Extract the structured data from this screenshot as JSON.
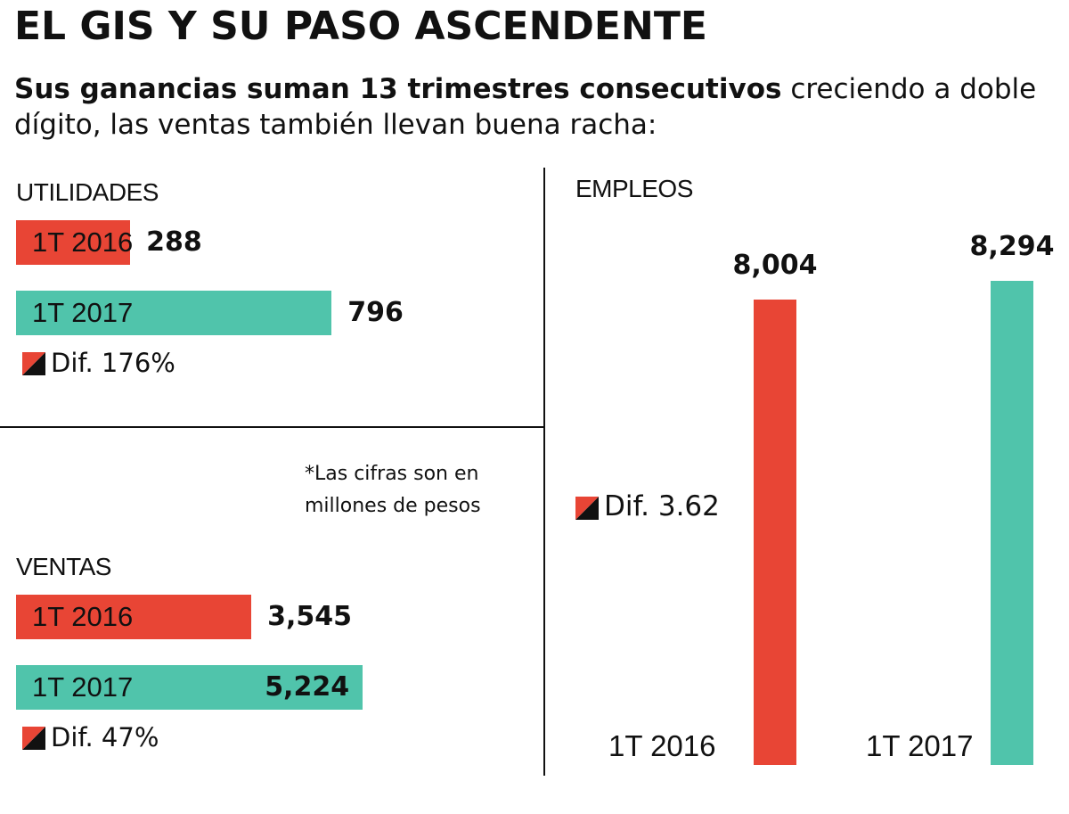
{
  "title": "EL GIS Y SU PASO ASCENDENTE",
  "subtitle_bold": "Sus ganancias suman 13 trimestres consecutivos",
  "subtitle_rest": " creciendo a doble dígito, las ventas también llevan buena racha:",
  "note_line1": "*Las cifras son en",
  "note_line2": "millones de pesos",
  "colors": {
    "q2016": "#e84535",
    "q2017": "#50c4ab",
    "icon_dark": "#111111"
  },
  "chart_data": [
    {
      "type": "bar",
      "orientation": "horizontal",
      "title": "UTILIDADES",
      "categories": [
        "1T 2016",
        "1T 2017"
      ],
      "values": [
        288,
        796
      ],
      "value_labels": [
        "288",
        "796"
      ],
      "difference": "Dif. 176%"
    },
    {
      "type": "bar",
      "orientation": "horizontal",
      "title": "VENTAS",
      "categories": [
        "1T 2016",
        "1T 2017"
      ],
      "values": [
        3545,
        5224
      ],
      "value_labels": [
        "3,545",
        "5,224"
      ],
      "difference": "Dif. 47%"
    },
    {
      "type": "bar",
      "orientation": "vertical",
      "title": "EMPLEOS",
      "categories": [
        "1T 2016",
        "1T 2017"
      ],
      "values": [
        8004,
        8294
      ],
      "value_labels": [
        "8,004",
        "8,294"
      ],
      "difference": "Dif. 3.62"
    }
  ]
}
